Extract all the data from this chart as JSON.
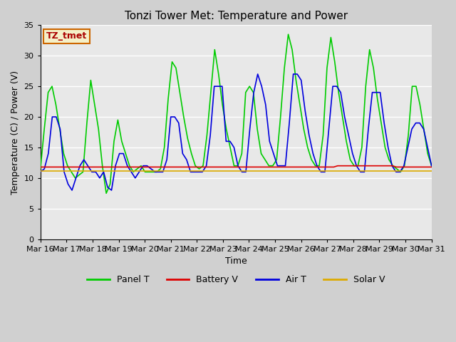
{
  "title": "Tonzi Tower Met: Temperature and Power",
  "xlabel": "Time",
  "ylabel": "Temperature (C) / Power (V)",
  "ylim": [
    0,
    35
  ],
  "yticks": [
    0,
    5,
    10,
    15,
    20,
    25,
    30,
    35
  ],
  "xtick_labels": [
    "Mar 16",
    "Mar 17",
    "Mar 18",
    "Mar 19",
    "Mar 20",
    "Mar 21",
    "Mar 22",
    "Mar 23",
    "Mar 24",
    "Mar 25",
    "Mar 26",
    "Mar 27",
    "Mar 28",
    "Mar 29",
    "Mar 30",
    "Mar 31"
  ],
  "plot_bg_color": "#e8e8e8",
  "fig_bg_color": "#d0d0d0",
  "grid_color": "#ffffff",
  "legend_label": "TZ_tmet",
  "legend_box_color": "#f5f0c8",
  "legend_box_edge": "#cc6600",
  "color_panel_t": "#00cc00",
  "color_battery_v": "#dd0000",
  "color_air_t": "#0000dd",
  "color_solar_v": "#ddaa00",
  "linewidth": 1.2,
  "panel_t": [
    11.5,
    18,
    24,
    25,
    22,
    18,
    14,
    12,
    11,
    10,
    10.5,
    11,
    19,
    26,
    22,
    18,
    12,
    7.5,
    9,
    16,
    19.5,
    16,
    14,
    12,
    11,
    11.5,
    12,
    11,
    11,
    11,
    11,
    11.5,
    15,
    23,
    29,
    28,
    24,
    20,
    16.5,
    14,
    12,
    11.5,
    12,
    17,
    24,
    31,
    27,
    22,
    18,
    15,
    12,
    12,
    14,
    24,
    25,
    24,
    18,
    14,
    13,
    12,
    12,
    13,
    20,
    28,
    33.5,
    31,
    26,
    22,
    18,
    15,
    13,
    12,
    12,
    17,
    28,
    33,
    29,
    24,
    20,
    16,
    13,
    12,
    12,
    15,
    25,
    31,
    28,
    23,
    19,
    15,
    13,
    12,
    11.5,
    11,
    12,
    17,
    25,
    25,
    22,
    18,
    14,
    12
  ],
  "air_t": [
    11,
    11.5,
    14,
    20,
    20,
    18,
    11,
    9,
    8,
    10,
    12,
    13,
    12,
    11,
    11,
    10,
    11,
    8.5,
    8,
    12,
    14,
    14,
    12,
    11,
    10,
    11,
    12,
    12,
    11.5,
    11,
    11,
    11,
    13,
    20,
    20,
    19,
    14,
    13,
    11,
    11,
    11,
    11,
    12,
    17,
    25,
    25,
    25,
    16,
    16,
    15,
    12,
    11,
    11,
    18,
    24,
    27,
    25,
    22,
    16,
    14,
    12,
    12,
    12,
    19,
    27,
    27,
    26,
    21,
    17,
    14,
    12,
    11,
    11,
    18,
    25,
    25,
    24,
    20,
    17,
    14,
    12,
    11,
    11,
    18,
    24,
    24,
    24,
    19,
    15,
    12,
    11,
    11,
    12,
    15,
    18,
    19,
    19,
    18,
    15,
    12
  ],
  "battery_v": [
    11.8,
    11.8,
    11.8,
    11.8,
    11.8,
    11.8,
    11.8,
    11.8,
    11.8,
    11.8,
    11.8,
    11.8,
    11.8,
    11.8,
    11.8,
    11.8,
    11.8,
    11.8,
    11.8,
    11.8,
    11.8,
    11.8,
    11.8,
    11.8,
    11.8,
    11.8,
    11.8,
    11.8,
    11.8,
    11.8,
    11.8,
    11.8,
    11.8,
    11.8,
    11.8,
    11.8,
    11.8,
    11.8,
    11.8,
    11.8,
    11.8,
    11.8,
    11.8,
    11.8,
    11.8,
    11.8,
    11.8,
    11.8,
    11.8,
    11.8,
    11.8,
    11.8,
    11.8,
    11.8,
    11.8,
    11.8,
    11.8,
    11.8,
    11.8,
    11.8,
    11.8,
    11.8,
    11.8,
    11.8,
    11.8,
    11.8,
    11.8,
    11.8,
    11.8,
    11.8,
    11.8,
    11.8,
    11.8,
    11.8,
    11.8,
    11.8,
    12.0,
    12.0,
    12.0,
    12.0,
    12.0,
    12.0,
    12.0,
    12.0,
    12.0,
    12.0,
    12.0,
    12.0,
    12.0,
    12.0,
    12.0,
    11.8,
    11.8,
    11.8,
    11.8,
    11.8,
    11.8,
    11.8,
    11.8,
    11.8,
    11.8
  ],
  "solar_v": [
    11.2,
    11.2,
    11.2,
    11.2,
    11.2,
    11.2,
    11.2,
    11.2,
    11.2,
    11.2,
    11.2,
    11.2,
    11.2,
    11.2,
    11.2,
    11.2,
    11.2,
    11.2,
    11.2,
    11.2,
    11.2,
    11.2,
    11.2,
    11.2,
    11.2,
    11.2,
    11.2,
    11.2,
    11.2,
    11.2,
    11.2,
    11.2,
    11.2,
    11.2,
    11.2,
    11.2,
    11.2,
    11.2,
    11.2,
    11.2,
    11.2,
    11.2,
    11.2,
    11.2,
    11.2,
    11.2,
    11.2,
    11.2,
    11.2,
    11.2,
    11.2,
    11.2,
    11.2,
    11.2,
    11.2,
    11.2,
    11.2,
    11.2,
    11.2,
    11.2,
    11.2,
    11.2,
    11.2,
    11.2,
    11.2,
    11.2,
    11.2,
    11.2,
    11.2,
    11.2,
    11.2,
    11.2,
    11.2,
    11.2,
    11.2,
    11.2,
    11.2,
    11.2,
    11.2,
    11.2,
    11.2,
    11.2,
    11.2,
    11.2,
    11.2,
    11.2,
    11.2,
    11.2,
    11.2,
    11.2,
    11.2,
    11.2,
    11.2,
    11.2,
    11.2,
    11.2,
    11.2,
    11.2,
    11.2,
    11.2,
    11.2
  ]
}
